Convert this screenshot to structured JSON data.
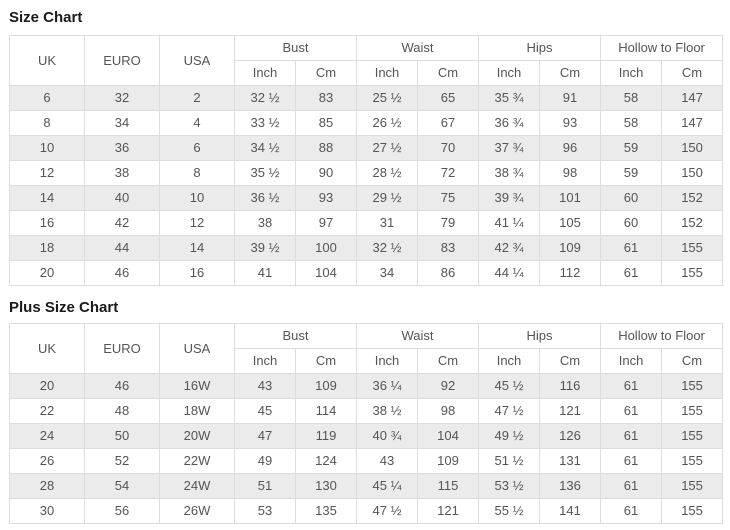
{
  "colors": {
    "row_stripe": "#ebebeb",
    "border": "#dddddd",
    "cell_text": "#555555",
    "title_text": "#1a1a1a",
    "background": "#ffffff"
  },
  "sections": [
    {
      "title": "Size Chart",
      "table": {
        "simple_columns": [
          "UK",
          "EURO",
          "USA"
        ],
        "group_columns": [
          {
            "label": "Bust",
            "sub": [
              "Inch",
              "Cm"
            ]
          },
          {
            "label": "Waist",
            "sub": [
              "Inch",
              "Cm"
            ]
          },
          {
            "label": "Hips",
            "sub": [
              "Inch",
              "Cm"
            ]
          },
          {
            "label": "Hollow to Floor",
            "sub": [
              "Inch",
              "Cm"
            ]
          }
        ],
        "rows": [
          [
            "6",
            "32",
            "2",
            "32 ½",
            "83",
            "25 ½",
            "65",
            "35 ¾",
            "91",
            "58",
            "147"
          ],
          [
            "8",
            "34",
            "4",
            "33 ½",
            "85",
            "26 ½",
            "67",
            "36 ¾",
            "93",
            "58",
            "147"
          ],
          [
            "10",
            "36",
            "6",
            "34 ½",
            "88",
            "27 ½",
            "70",
            "37 ¾",
            "96",
            "59",
            "150"
          ],
          [
            "12",
            "38",
            "8",
            "35 ½",
            "90",
            "28 ½",
            "72",
            "38 ¾",
            "98",
            "59",
            "150"
          ],
          [
            "14",
            "40",
            "10",
            "36 ½",
            "93",
            "29 ½",
            "75",
            "39 ¾",
            "101",
            "60",
            "152"
          ],
          [
            "16",
            "42",
            "12",
            "38",
            "97",
            "31",
            "79",
            "41 ¼",
            "105",
            "60",
            "152"
          ],
          [
            "18",
            "44",
            "14",
            "39 ½",
            "100",
            "32 ½",
            "83",
            "42 ¾",
            "109",
            "61",
            "155"
          ],
          [
            "20",
            "46",
            "16",
            "41",
            "104",
            "34",
            "86",
            "44 ¼",
            "112",
            "61",
            "155"
          ]
        ]
      }
    },
    {
      "title": "Plus Size Chart",
      "table": {
        "simple_columns": [
          "UK",
          "EURO",
          "USA"
        ],
        "group_columns": [
          {
            "label": "Bust",
            "sub": [
              "Inch",
              "Cm"
            ]
          },
          {
            "label": "Waist",
            "sub": [
              "Inch",
              "Cm"
            ]
          },
          {
            "label": "Hips",
            "sub": [
              "Inch",
              "Cm"
            ]
          },
          {
            "label": "Hollow to Floor",
            "sub": [
              "Inch",
              "Cm"
            ]
          }
        ],
        "rows": [
          [
            "20",
            "46",
            "16W",
            "43",
            "109",
            "36 ¼",
            "92",
            "45 ½",
            "116",
            "61",
            "155"
          ],
          [
            "22",
            "48",
            "18W",
            "45",
            "114",
            "38 ½",
            "98",
            "47 ½",
            "121",
            "61",
            "155"
          ],
          [
            "24",
            "50",
            "20W",
            "47",
            "119",
            "40 ¾",
            "104",
            "49 ½",
            "126",
            "61",
            "155"
          ],
          [
            "26",
            "52",
            "22W",
            "49",
            "124",
            "43",
            "109",
            "51 ½",
            "131",
            "61",
            "155"
          ],
          [
            "28",
            "54",
            "24W",
            "51",
            "130",
            "45 ¼",
            "115",
            "53 ½",
            "136",
            "61",
            "155"
          ],
          [
            "30",
            "56",
            "26W",
            "53",
            "135",
            "47 ½",
            "121",
            "55 ½",
            "141",
            "61",
            "155"
          ]
        ]
      }
    }
  ]
}
